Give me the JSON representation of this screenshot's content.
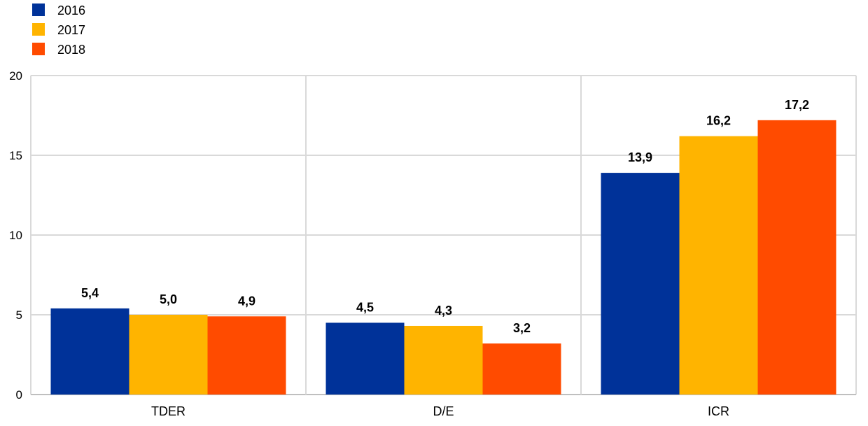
{
  "chart_data": {
    "type": "bar",
    "categories": [
      "TDER",
      "D/E",
      "ICR"
    ],
    "series": [
      {
        "name": "2016",
        "color": "#003299",
        "values": [
          5.4,
          4.5,
          13.9
        ],
        "labels": [
          "5,4",
          "4,5",
          "13,9"
        ]
      },
      {
        "name": "2017",
        "color": "#FFB400",
        "values": [
          5.0,
          4.3,
          16.2
        ],
        "labels": [
          "5,0",
          "4,3",
          "16,2"
        ]
      },
      {
        "name": "2018",
        "color": "#FF4B00",
        "values": [
          4.9,
          3.2,
          17.2
        ],
        "labels": [
          "4,9",
          "3,2",
          "17,2"
        ]
      }
    ],
    "ylim": [
      0,
      20
    ],
    "yticks": [
      "0",
      "5",
      "10",
      "15",
      "20"
    ],
    "grid": true,
    "legend_position": "top-left"
  }
}
